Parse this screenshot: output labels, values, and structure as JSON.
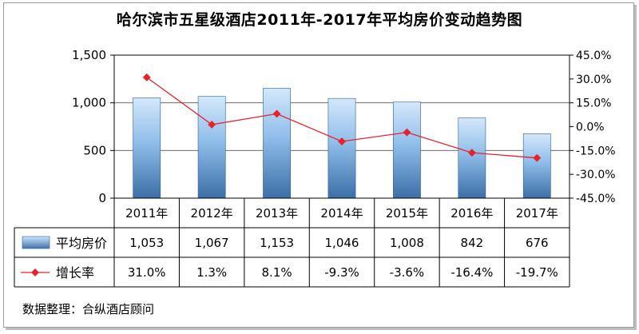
{
  "title": "哈尔滨市五星级酒店2011年-2017年平均房价变动趋势图",
  "source": "数据整理：合纵酒店顾问",
  "chart_data": {
    "type": "bar",
    "categories": [
      "2011年",
      "2012年",
      "2013年",
      "2014年",
      "2015年",
      "2016年",
      "2017年"
    ],
    "series": [
      {
        "name": "平均房价",
        "type": "bar",
        "values": [
          1053,
          1067,
          1153,
          1046,
          1008,
          842,
          676
        ],
        "labels": [
          "1,053",
          "1,067",
          "1,153",
          "1,046",
          "1,008",
          "842",
          "676"
        ],
        "axis": "left",
        "color": "#6ea6dc"
      },
      {
        "name": "增长率",
        "type": "line",
        "values": [
          31.0,
          1.3,
          8.1,
          -9.3,
          -3.6,
          -16.4,
          -19.7
        ],
        "labels": [
          "31.0%",
          "1.3%",
          "8.1%",
          "-9.3%",
          "-3.6%",
          "-16.4%",
          "-19.7%"
        ],
        "axis": "right",
        "color": "#e8222a"
      }
    ],
    "y_left": {
      "ylim": [
        0,
        1500
      ],
      "ticks": [
        0,
        500,
        1000,
        1500
      ],
      "tick_labels": [
        "0",
        "500",
        "1,000",
        "1,500"
      ]
    },
    "y_right": {
      "ylim": [
        -45,
        45
      ],
      "ticks": [
        -45,
        -30,
        -15,
        0,
        15,
        30,
        45
      ],
      "tick_labels": [
        "-45.0%",
        "-30.0%",
        "-15.0%",
        "0.0%",
        "15.0%",
        "30.0%",
        "45.0%"
      ]
    },
    "grid": true,
    "legend": "data-table"
  }
}
